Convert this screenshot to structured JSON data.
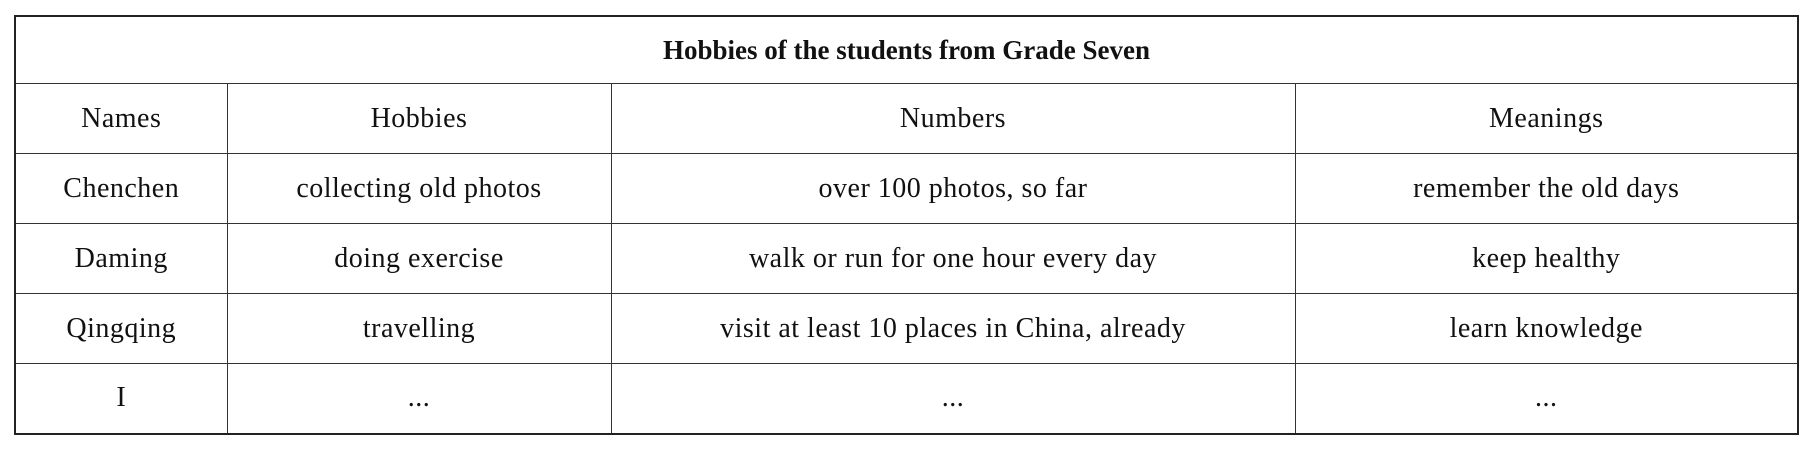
{
  "table": {
    "title": "Hobbies of the students from Grade Seven",
    "headers": [
      "Names",
      "Hobbies",
      "Numbers",
      "Meanings"
    ],
    "rows": [
      [
        "Chenchen",
        "collecting old photos",
        "over 100 photos, so far",
        "remember the old days"
      ],
      [
        "Daming",
        "doing exercise",
        "walk or run for one hour every day",
        "keep healthy"
      ],
      [
        "Qingqing",
        "travelling",
        "visit at least 10 places in China, already",
        "learn knowledge"
      ],
      [
        "I",
        "...",
        "...",
        "..."
      ]
    ]
  }
}
